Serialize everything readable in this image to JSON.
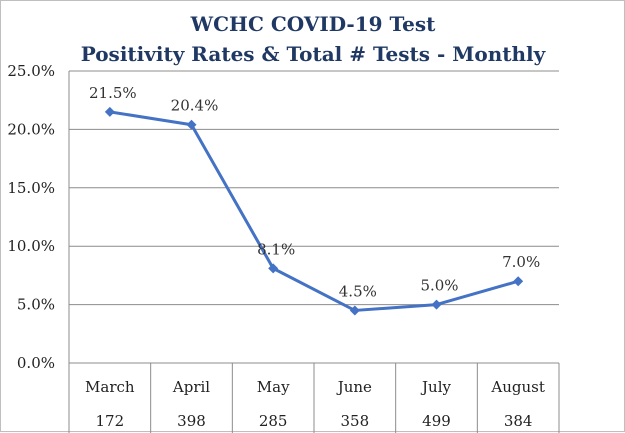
{
  "chart_data": {
    "type": "line",
    "title": "WCHC COVID-19 Test",
    "subtitle": "Positivity Rates & Total # Tests - Monthly",
    "categories": [
      "March",
      "April",
      "May",
      "June",
      "July",
      "August"
    ],
    "series": [
      {
        "values": [
          21.5,
          20.4,
          8.1,
          4.5,
          5.0,
          7.0
        ],
        "labels": [
          "21.5%",
          "20.4%",
          "8.1%",
          "4.5%",
          "5.0%",
          "7.0%"
        ]
      }
    ],
    "total_tests": [
      "172",
      "398",
      "285",
      "358",
      "499",
      "384"
    ],
    "ylim": [
      0,
      25
    ],
    "yticks": [
      {
        "value": 0,
        "label": "0.0%"
      },
      {
        "value": 5,
        "label": "5.0%"
      },
      {
        "value": 10,
        "label": "10.0%"
      },
      {
        "value": 15,
        "label": "15.0%"
      },
      {
        "value": 20,
        "label": "20.0%"
      },
      {
        "value": 25,
        "label": "25.0%"
      }
    ],
    "grid": true,
    "legend": "none",
    "line_color": "#4472c4",
    "title_color": "#1f3864"
  }
}
